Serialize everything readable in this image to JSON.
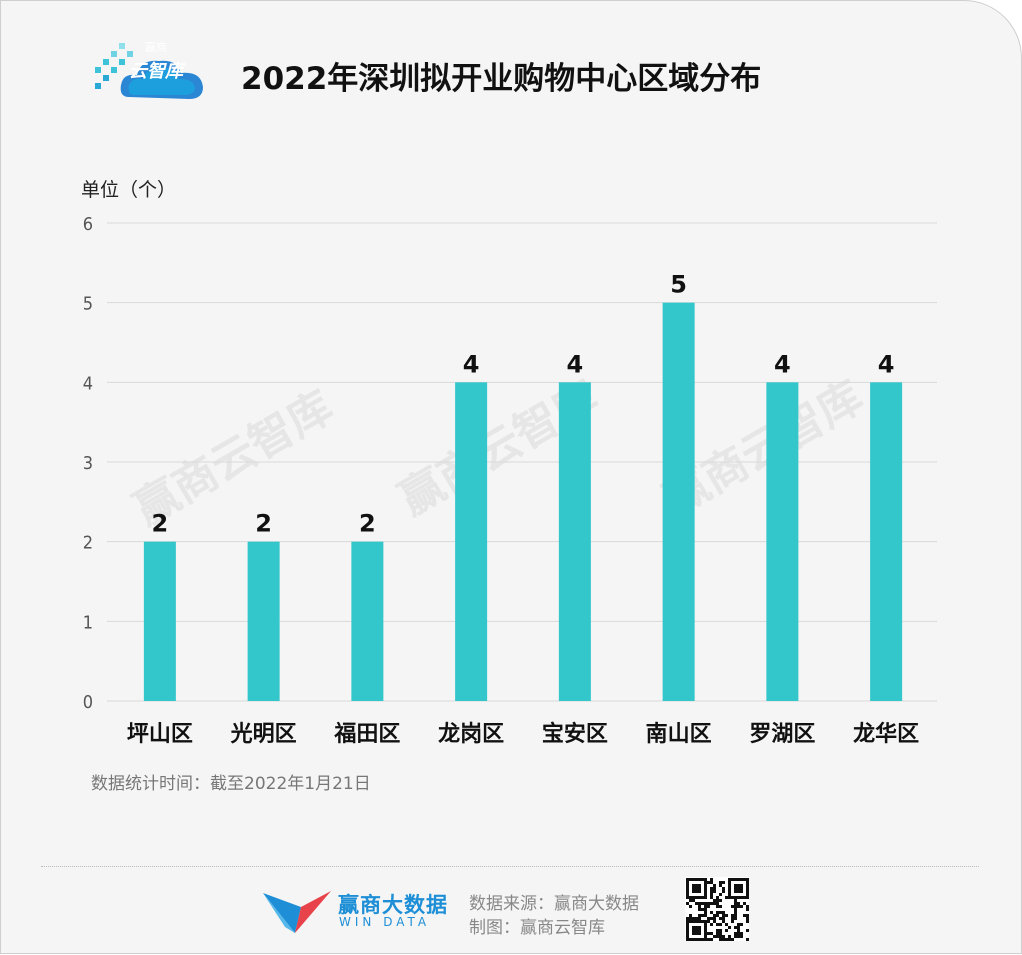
{
  "header": {
    "logo_top": "赢商",
    "logo_main": "云智库",
    "title": "2022年深圳拟开业购物中心区域分布"
  },
  "unit_label": "单位（个）",
  "chart_data": {
    "type": "bar",
    "title": "2022年深圳拟开业购物中心区域分布",
    "ylabel": "单位（个）",
    "categories": [
      "坪山区",
      "光明区",
      "福田区",
      "龙岗区",
      "宝安区",
      "南山区",
      "罗湖区",
      "龙华区"
    ],
    "values": [
      2,
      2,
      2,
      4,
      4,
      5,
      4,
      4
    ],
    "ylim": [
      0,
      6
    ],
    "yticks": [
      0,
      1,
      2,
      3,
      4,
      5,
      6
    ],
    "grid": true,
    "bar_color": "#33c6cb",
    "data_labels": true
  },
  "note": "数据统计时间：截至2022年1月21日",
  "watermark": "赢商云智库",
  "footer": {
    "brand_cn": "赢商大数据",
    "brand_en": "WIN DATA",
    "source": "数据来源：赢商大数据",
    "maker": "制图：赢商云智库",
    "qr_icon": "qr-code-icon"
  },
  "colors": {
    "bar": "#33c6cb",
    "background": "#f5f5f5",
    "brand_blue": "#1e8fd6",
    "brand_red": "#e8424a"
  }
}
